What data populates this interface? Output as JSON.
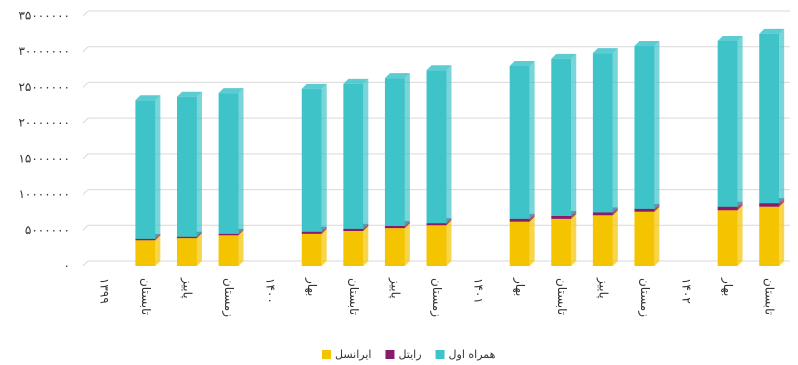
{
  "chart_data": {
    "type": "bar",
    "stacked": true,
    "categories": [
      "۱۳۹۹",
      "تابستان",
      "پاییز",
      "زمستان",
      "۱۴۰۰",
      "بهار",
      "تابستان",
      "پاییز",
      "زمستان",
      "۱۴۰۱",
      "بهار",
      "تابستان",
      "پاییز",
      "زمستان",
      "۱۴۰۲",
      "بهار",
      "تابستان"
    ],
    "series": [
      {
        "name": "ایرانسل",
        "color": "#f5c400",
        "values": [
          null,
          3600000,
          3900000,
          4300000,
          null,
          4500000,
          4900000,
          5300000,
          5700000,
          null,
          6200000,
          6600000,
          7100000,
          7600000,
          null,
          7800000,
          8300000
        ]
      },
      {
        "name": "رایتل",
        "color": "#8b1a6b",
        "values": [
          null,
          200000,
          200000,
          200000,
          null,
          300000,
          300000,
          300000,
          300000,
          null,
          400000,
          400000,
          400000,
          400000,
          null,
          500000,
          500000
        ]
      },
      {
        "name": "همراه اول",
        "color": "#3ec3c9",
        "values": [
          null,
          19400000,
          19600000,
          19700000,
          null,
          20000000,
          20300000,
          20700000,
          21400000,
          null,
          21400000,
          22000000,
          22300000,
          22800000,
          null,
          23200000,
          23700000
        ]
      }
    ],
    "ylim": [
      0,
      35000000
    ],
    "yticks": [
      {
        "value": 0,
        "label": "۰"
      },
      {
        "value": 5000000,
        "label": "۵۰۰۰۰۰۰"
      },
      {
        "value": 10000000,
        "label": "۱۰۰۰۰۰۰۰"
      },
      {
        "value": 15000000,
        "label": "۱۵۰۰۰۰۰۰"
      },
      {
        "value": 20000000,
        "label": "۲۰۰۰۰۰۰۰"
      },
      {
        "value": 25000000,
        "label": "۲۵۰۰۰۰۰۰"
      },
      {
        "value": 30000000,
        "label": "۳۰۰۰۰۰۰۰"
      },
      {
        "value": 35000000,
        "label": "۳۵۰۰۰۰۰۰"
      }
    ],
    "grid": true,
    "legend": "bottom"
  }
}
